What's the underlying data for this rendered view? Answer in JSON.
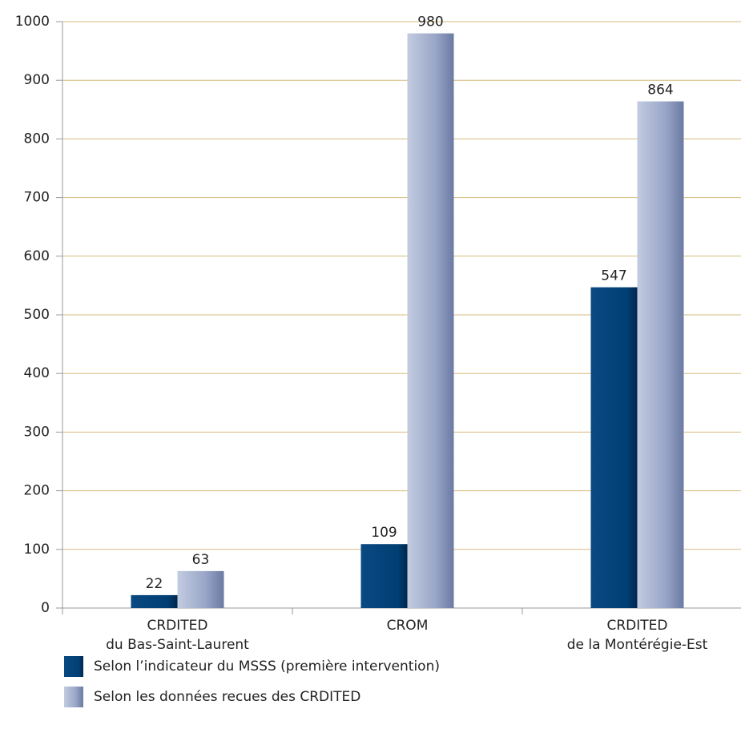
{
  "chart_data": {
    "type": "bar",
    "categories": [
      "CRDITED\ndu Bas-Saint-Laurent",
      "CROM",
      "CRDITED\nde la Montérégie-Est"
    ],
    "series": [
      {
        "name": "Selon l’indicateur du MSSS (première intervention)",
        "color": "#003e73",
        "values": [
          22,
          109,
          547
        ]
      },
      {
        "name": "Selon les données recues des CRDITED",
        "color": "#9aa6c8",
        "values": [
          63,
          980,
          864
        ]
      }
    ],
    "ylim": [
      0,
      1000
    ],
    "yticks": [
      0,
      100,
      200,
      300,
      400,
      500,
      600,
      700,
      800,
      900,
      1000
    ],
    "grid": true
  }
}
